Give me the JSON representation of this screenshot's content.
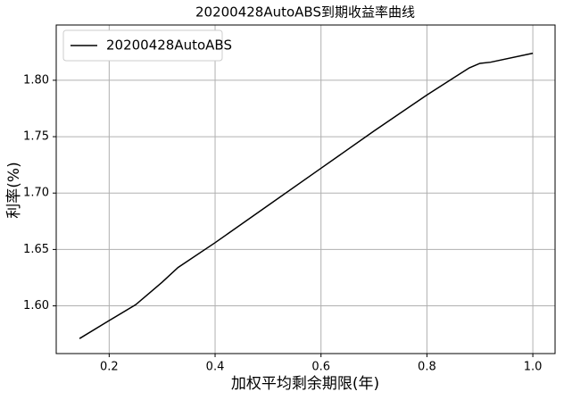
{
  "chart_data": {
    "type": "line",
    "title": "20200428AutoABS到期收益率曲线",
    "x_label": "加权平均剩余期限(年)",
    "y_label": "利率(%)",
    "x": [
      0.144,
      0.2,
      0.25,
      0.28,
      0.3,
      0.33,
      0.4,
      0.5,
      0.6,
      0.7,
      0.8,
      0.88,
      0.9,
      0.92,
      1.0
    ],
    "series": [
      {
        "name": "20200428AutoABS",
        "color": "#000000",
        "values": [
          1.571,
          1.587,
          1.601,
          1.613,
          1.621,
          1.634,
          1.656,
          1.689,
          1.722,
          1.755,
          1.787,
          1.811,
          1.815,
          1.816,
          1.824
        ]
      }
    ],
    "xlim": [
      0.1,
      1.042
    ],
    "ylim": [
      1.5577,
      1.849
    ],
    "xticks": [
      0.2,
      0.4,
      0.6,
      0.8,
      {
        "value": 1.0,
        "label": "1.0"
      }
    ],
    "yticks": [
      {
        "value": 1.6,
        "label": "1.60"
      },
      1.65,
      {
        "value": 1.7,
        "label": "1.70"
      },
      1.75,
      {
        "value": 1.8,
        "label": "1.80"
      }
    ],
    "grid": true,
    "legend": "upper-left"
  }
}
